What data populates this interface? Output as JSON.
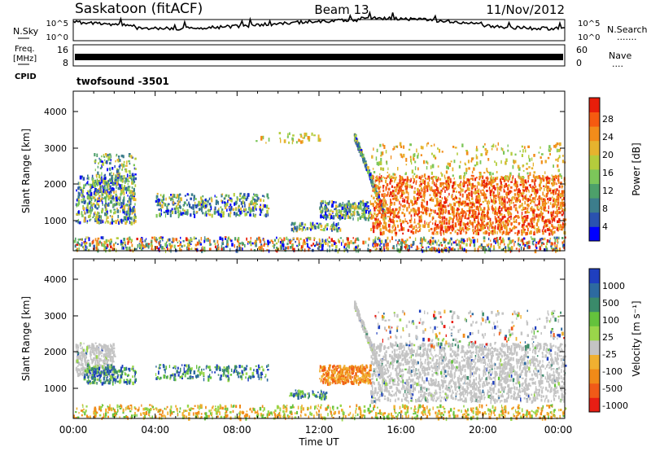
{
  "header": {
    "station": "Saskatoon (fitACF)",
    "beam": "Beam 13",
    "date": "11/Nov/2012"
  },
  "noise_panel": {
    "left_label": "N.Sky",
    "right_label": "N.Search",
    "right_marker": ".......",
    "ticks": [
      "10^5",
      "10^0"
    ]
  },
  "freq_panel": {
    "label_top": "Freq.",
    "label_unit": "[MHz]",
    "ticks": [
      "16",
      "8"
    ],
    "right_label": "Nave",
    "right_marker": "....",
    "right_ticks": [
      "60",
      "0"
    ]
  },
  "cpid": {
    "label": "CPID",
    "value": "twofsound -3501"
  },
  "chart_data": [
    {
      "type": "heatmap",
      "parameter": "power",
      "ylabel": "Slant Range [km]",
      "ylim": [
        200,
        4600
      ],
      "yticks": [
        "1000",
        "2000",
        "3000",
        "4000"
      ],
      "colorbar": {
        "label": "Power [dB]",
        "ticks": [
          "28",
          "24",
          "20",
          "16",
          "12",
          "8",
          "4"
        ],
        "range": [
          0,
          32
        ],
        "colors": [
          "#0000ff",
          "#2a52b0",
          "#3c7d8c",
          "#4da06a",
          "#7cc65a",
          "#b4cc3c",
          "#e6b32e",
          "#f28c1a",
          "#f55a10",
          "#e81e0a"
        ]
      }
    },
    {
      "type": "heatmap",
      "parameter": "velocity",
      "ylabel": "Slant Range [km]",
      "ylim": [
        200,
        4600
      ],
      "yticks": [
        "1000",
        "2000",
        "3000",
        "4000"
      ],
      "colorbar": {
        "label": "Velocity [m s⁻¹]",
        "ticks": [
          "1000",
          "500",
          "100",
          "25",
          "-25",
          "-100",
          "-500",
          "-1000"
        ],
        "colors": [
          "#1f3fbf",
          "#2d6aa0",
          "#3a8a6a",
          "#64c23c",
          "#9ad64a",
          "#c4c4c4",
          "#f0b030",
          "#f08a18",
          "#f05a18",
          "#e81e14"
        ]
      },
      "ground_scatter_color": "#c4c4c4"
    }
  ],
  "xaxis": {
    "label": "Time UT",
    "ticks": [
      "00:00",
      "04:00",
      "08:00",
      "12:00",
      "16:00",
      "20:00",
      "00:00"
    ],
    "range_hours": [
      0,
      24
    ]
  }
}
